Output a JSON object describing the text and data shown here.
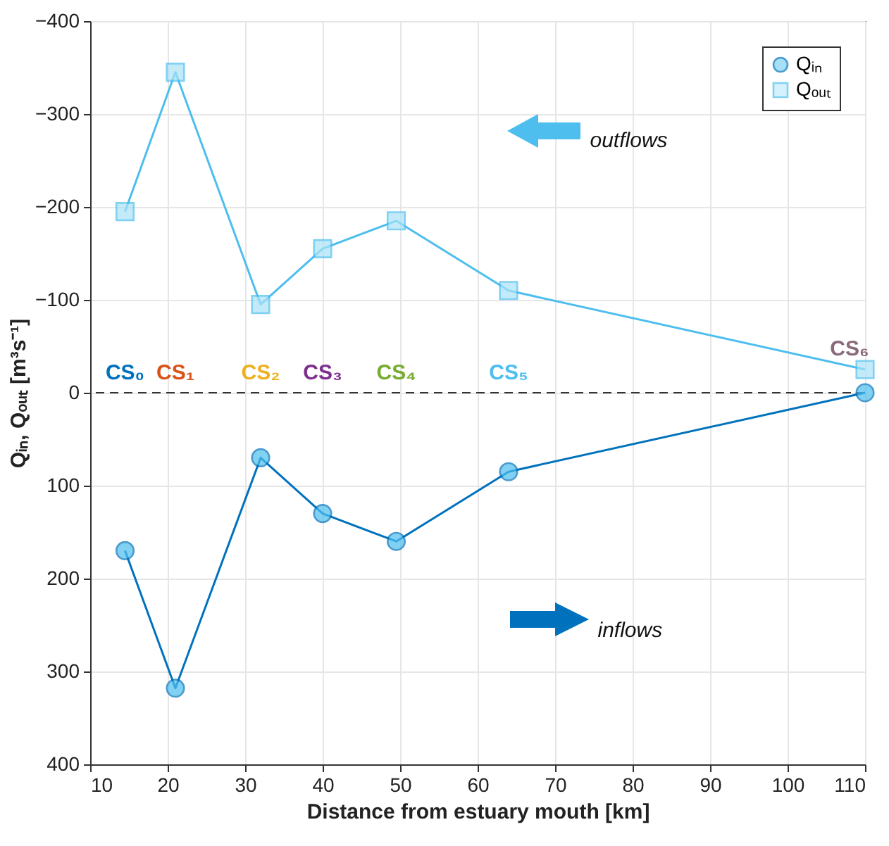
{
  "chart_data": {
    "type": "line",
    "xlabel": "Distance from estuary mouth [km]",
    "ylabel": "Qᵢₙ, Qₒᵤₜ [m³s⁻¹]",
    "x": [
      14.5,
      21,
      32,
      40,
      49.5,
      64,
      110
    ],
    "series": [
      {
        "name": "Qᵢₙ",
        "color": "#0072bd",
        "marker": "circle",
        "values": [
          170,
          318,
          70,
          130,
          160,
          85,
          0
        ]
      },
      {
        "name": "Qₒᵤₜ",
        "color": "#4dbeee",
        "marker": "square",
        "values": [
          -195,
          -345,
          -95,
          -155,
          -185,
          -110,
          -25
        ]
      }
    ],
    "xlim": [
      10,
      110
    ],
    "xticks": [
      10,
      20,
      30,
      40,
      50,
      60,
      70,
      80,
      90,
      100,
      110
    ],
    "ylim": [
      400,
      -400
    ],
    "yticks": [
      -400,
      -300,
      -200,
      -100,
      0,
      100,
      200,
      300,
      400
    ],
    "grid": true,
    "legend": "top right",
    "line_style": "solid",
    "ref_lines": [
      {
        "axis": "y",
        "value": 0,
        "line_style": "dashed",
        "color": "#333333"
      }
    ],
    "annotations": [
      "CS₀",
      "CS₁",
      "CS₂",
      "CS₃",
      "CS₄",
      "CS₅",
      "CS₆",
      "outflows",
      "inflows"
    ]
  }
}
